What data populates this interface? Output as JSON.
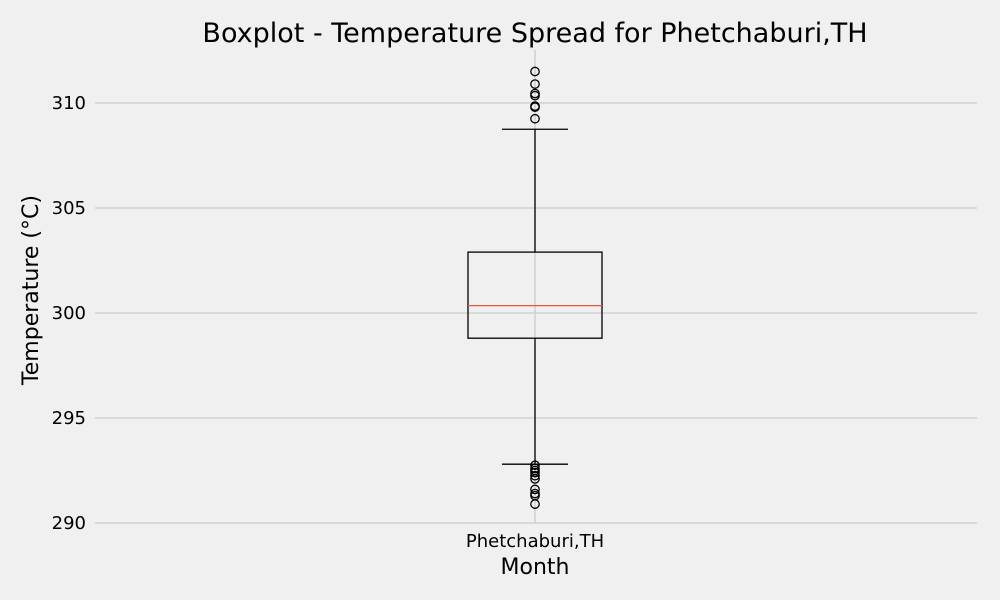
{
  "chart_data": {
    "type": "box",
    "title": "Boxplot - Temperature Spread for Phetchaburi,TH",
    "xlabel": "Month",
    "ylabel": "Temperature (°C)",
    "categories": [
      "Phetchaburi,TH"
    ],
    "ylim": [
      289.5,
      312.5
    ],
    "yticks": [
      290,
      295,
      300,
      305,
      310
    ],
    "grid": true,
    "boxes": [
      {
        "category": "Phetchaburi,TH",
        "whisker_low": 292.8,
        "q1": 298.8,
        "median": 300.35,
        "q3": 302.9,
        "whisker_high": 308.75,
        "fliers": [
          309.25,
          309.8,
          309.85,
          310.35,
          310.45,
          310.9,
          311.5,
          292.75,
          292.6,
          292.5,
          292.4,
          292.25,
          292.1,
          291.6,
          291.4,
          291.3,
          290.9
        ]
      }
    ],
    "colors": {
      "background": "#f0f0f0",
      "grid": "#cbcbcb",
      "median": "#e5553f",
      "box": "#000000"
    }
  }
}
